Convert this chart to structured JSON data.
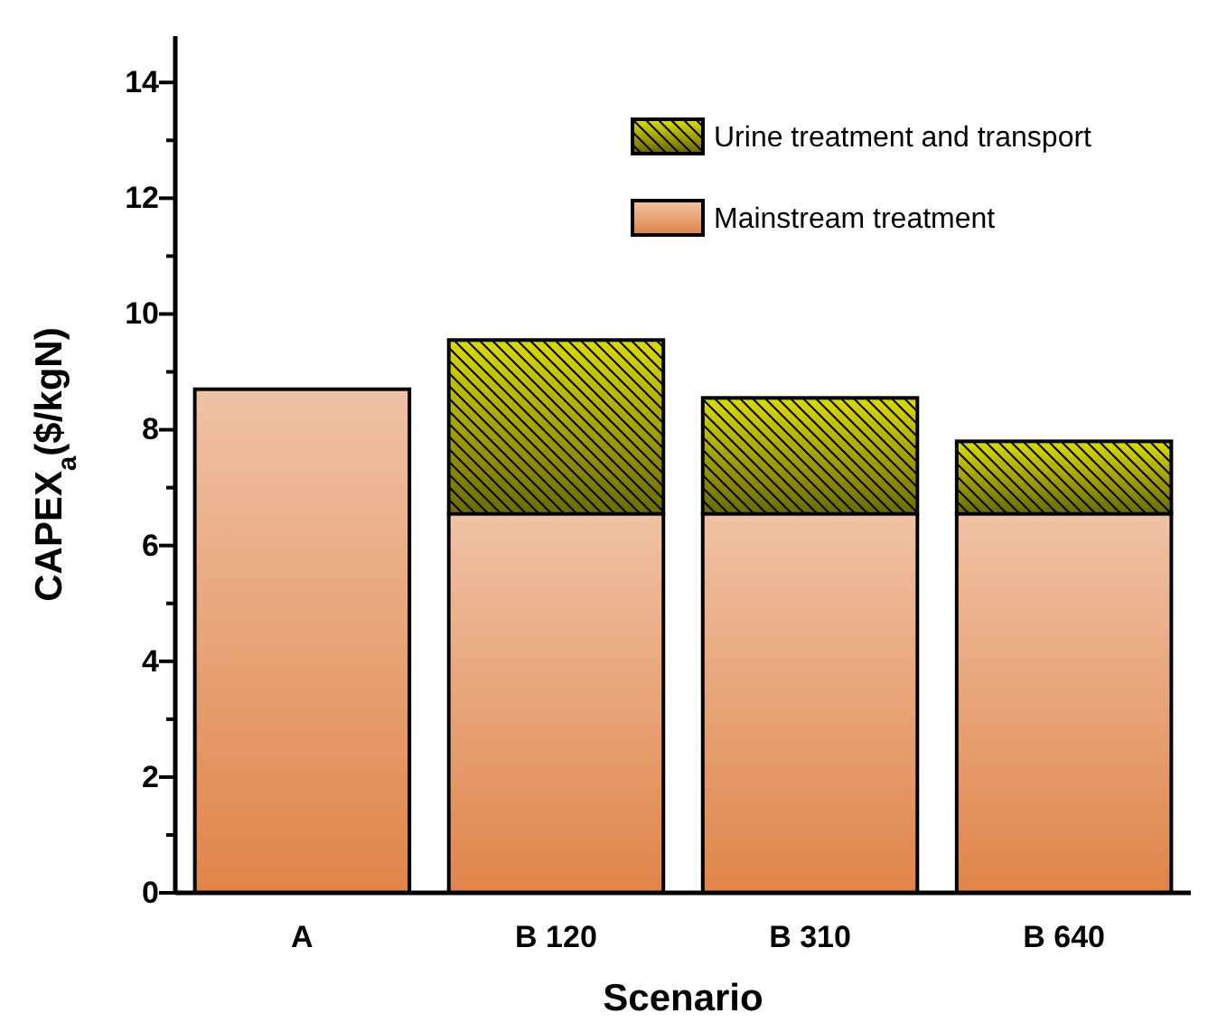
{
  "chart_data": {
    "type": "bar",
    "stacked": true,
    "xlabel": "Scenario",
    "ylabel": "CAPEX$_{a}$($/kgN)",
    "categories": [
      "A",
      "B 120",
      "B 310",
      "B 640"
    ],
    "series": [
      {
        "name": "Mainstream treatment",
        "color": "#e0854a",
        "values": [
          8.7,
          6.55,
          6.55,
          6.55
        ]
      },
      {
        "name": "Urine treatment and transport",
        "color": "#d8d800",
        "values": [
          null,
          3.0,
          2.0,
          1.25
        ]
      }
    ],
    "ylim": [
      0,
      14.8
    ],
    "yticks": [
      0,
      {
        "value": 1,
        "label": null
      },
      2,
      {
        "value": 3,
        "label": null
      },
      4,
      {
        "value": 5,
        "label": null
      },
      6,
      {
        "value": 7,
        "label": null
      },
      8,
      {
        "value": 9,
        "label": null
      },
      10,
      {
        "value": 11,
        "label": null
      },
      12,
      {
        "value": 13,
        "label": null
      },
      14
    ],
    "legend": "top right",
    "grid": false
  }
}
